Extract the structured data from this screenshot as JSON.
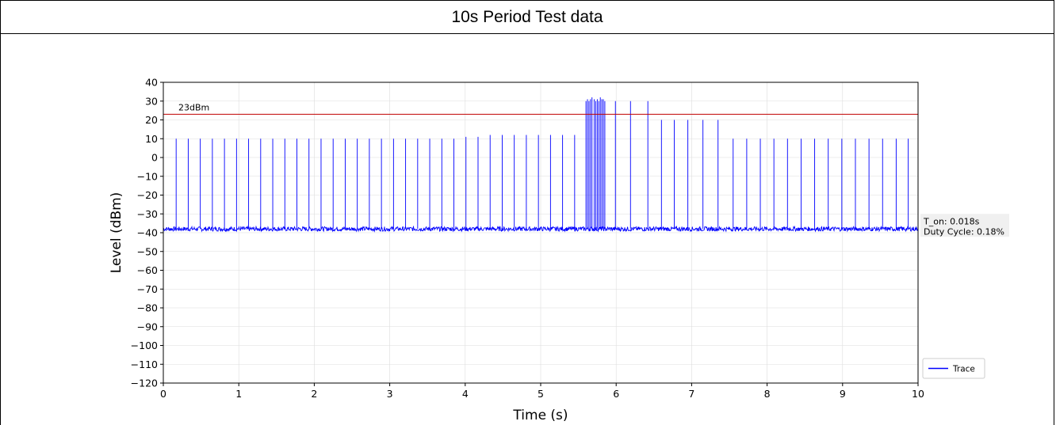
{
  "header": {
    "title": "10s Period Test data"
  },
  "chart_data": {
    "type": "line",
    "xlabel": "Time (s)",
    "ylabel": "Level (dBm)",
    "xlim": [
      0,
      10
    ],
    "ylim": [
      -120,
      40
    ],
    "x_ticks": [
      0,
      1,
      2,
      3,
      4,
      5,
      6,
      7,
      8,
      9,
      10
    ],
    "y_ticks": [
      40,
      30,
      20,
      10,
      0,
      -10,
      -20,
      -30,
      -40,
      -50,
      -60,
      -70,
      -80,
      -90,
      -100,
      -110,
      -120
    ],
    "grid": true,
    "legend_position": "lower-right",
    "noise_floor_dbm": -38,
    "reference_line": {
      "value": 23,
      "label": "23dBm",
      "color": "#c00000"
    },
    "annotations": [
      "T_on: 0.018s",
      "Duty Cycle: 0.18%"
    ],
    "series": [
      {
        "name": "Trace",
        "color": "#0000ff",
        "pulse_times_s": [
          0.17,
          0.33,
          0.49,
          0.65,
          0.81,
          0.97,
          1.13,
          1.29,
          1.45,
          1.61,
          1.77,
          1.93,
          2.09,
          2.25,
          2.41,
          2.57,
          2.73,
          2.89,
          3.05,
          3.21,
          3.37,
          3.53,
          3.69,
          3.85,
          4.01,
          4.17,
          4.33,
          4.49,
          4.65,
          4.81,
          4.97,
          5.13,
          5.29,
          5.45,
          5.6,
          5.62,
          5.64,
          5.66,
          5.68,
          5.71,
          5.73,
          5.75,
          5.77,
          5.79,
          5.81,
          5.83,
          5.85,
          5.99,
          6.19,
          6.42,
          6.6,
          6.77,
          6.95,
          7.15,
          7.35,
          7.55,
          7.73,
          7.91,
          8.09,
          8.27,
          8.45,
          8.63,
          8.81,
          8.99,
          9.17,
          9.35,
          9.53,
          9.71,
          9.87
        ],
        "pulse_peak_dbm": [
          10,
          10,
          10,
          10,
          10,
          10,
          10,
          10,
          10,
          10,
          10,
          10,
          10,
          10,
          10,
          10,
          10,
          10,
          10,
          10,
          10,
          10,
          10,
          10,
          11,
          11,
          12,
          12,
          12,
          12,
          12,
          12,
          12,
          12,
          30,
          31,
          30,
          31,
          32,
          31,
          30,
          31,
          30,
          32,
          31,
          31,
          30,
          30,
          30,
          30,
          20,
          20,
          20,
          20,
          20,
          10,
          10,
          10,
          10,
          10,
          10,
          10,
          10,
          10,
          10,
          10,
          10,
          10,
          10
        ]
      }
    ]
  }
}
